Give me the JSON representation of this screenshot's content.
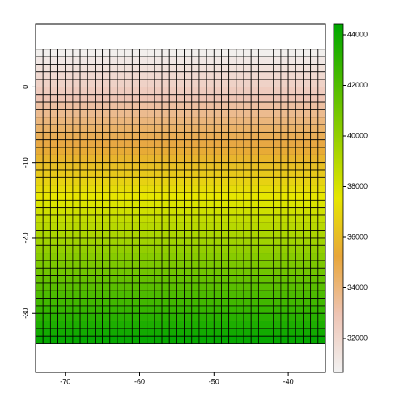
{
  "chart_data": {
    "type": "raster",
    "x": [
      -73.5,
      -72.5,
      -71.5,
      -70.5,
      -69.5,
      -68.5,
      -67.5,
      -66.5,
      -65.5,
      -64.5,
      -63.5,
      -62.5,
      -61.5,
      -60.5,
      -59.5,
      -58.5,
      -57.5,
      -56.5,
      -55.5,
      -54.5,
      -53.5,
      -52.5,
      -51.5,
      -50.5,
      -49.5,
      -48.5,
      -47.5,
      -46.5,
      -45.5,
      -44.5,
      -43.5,
      -42.5,
      -41.5,
      -40.5,
      -39.5,
      -38.5,
      -37.5,
      -36.5,
      -35.5
    ],
    "y": [
      4.5,
      3.5,
      2.5,
      1.5,
      0.5,
      -0.5,
      -1.5,
      -2.5,
      -3.5,
      -4.5,
      -5.5,
      -6.5,
      -7.5,
      -8.5,
      -9.5,
      -10.5,
      -11.5,
      -12.5,
      -13.5,
      -14.5,
      -15.5,
      -16.5,
      -17.5,
      -18.5,
      -19.5,
      -20.5,
      -21.5,
      -22.5,
      -23.5,
      -24.5,
      -25.5,
      -26.5,
      -27.5,
      -28.5,
      -29.5,
      -30.5,
      -31.5,
      -32.5,
      -33.5
    ],
    "values": [
      30830,
      31183,
      31536,
      31889,
      32242,
      32595,
      32948,
      33301,
      33654,
      34007,
      34360,
      34713,
      35066,
      35419,
      35772,
      36125,
      36478,
      36831,
      37184,
      37537,
      37890,
      38243,
      38596,
      38949,
      39302,
      39655,
      40008,
      40361,
      40714,
      41067,
      41420,
      41773,
      42126,
      42479,
      42832,
      43185,
      43538,
      43891,
      44244
    ],
    "xlim": [
      -74,
      -35
    ],
    "ylim": [
      -37.8,
      8.3
    ],
    "xticks": [
      -70,
      -60,
      -50,
      -40
    ],
    "yticks": [
      -30,
      -20,
      -10,
      0
    ],
    "zlim": [
      30656,
      44416
    ],
    "zticks": [
      32000,
      34000,
      36000,
      38000,
      40000,
      42000,
      44000
    ],
    "colors": [
      "#F2F2F2",
      "#EEC4B4",
      "#E8A63A",
      "#E6E600",
      "#99D000",
      "#4DBB00",
      "#00A600"
    ]
  }
}
